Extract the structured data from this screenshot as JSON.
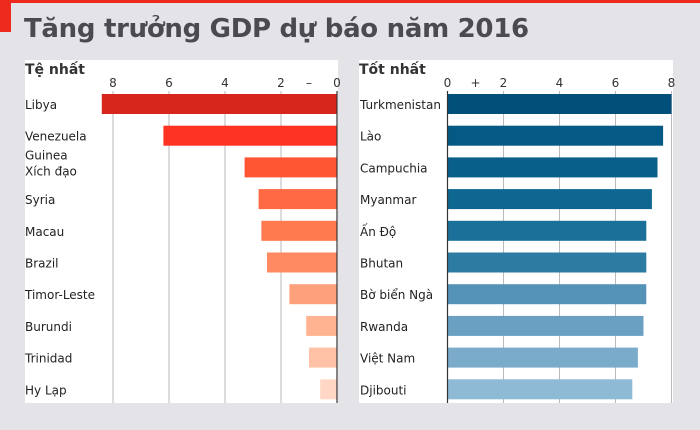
{
  "title": "Tăng trưởng GDP dự báo năm 2016",
  "colors": {
    "accent": "#ee2a1f",
    "worst_bars": [
      "#d7261c",
      "#ff3322",
      "#ff5533",
      "#ff6a44",
      "#ff7a4f",
      "#ff8a62",
      "#ffa07c",
      "#ffb391",
      "#ffc2a6",
      "#ffd7c4"
    ],
    "best_bars": [
      "#00507a",
      "#045a84",
      "#075f8a",
      "#0e6791",
      "#1a7099",
      "#2c7ba3",
      "#5592b7",
      "#6aa1c3",
      "#7aabcb",
      "#8fbad6"
    ]
  },
  "chart_data": [
    {
      "type": "bar",
      "orientation": "horizontal",
      "direction": "right-to-left",
      "title": "Tệ nhất",
      "xlim": [
        0,
        8
      ],
      "ticks": [
        "8",
        "6",
        "4",
        "2",
        "–",
        "0"
      ],
      "tick_values": [
        8,
        6,
        4,
        2,
        1,
        0
      ],
      "categories": [
        "Libya",
        "Venezuela",
        "Guinea\nXích đạo",
        "Syria",
        "Macau",
        "Brazil",
        "Timor-Leste",
        "Burundi",
        "Trinidad",
        "Hy Lạp"
      ],
      "values": [
        -8.4,
        -6.2,
        -3.3,
        -2.8,
        -2.7,
        -2.5,
        -1.7,
        -1.1,
        -1.0,
        -0.6
      ],
      "grid": true
    },
    {
      "type": "bar",
      "orientation": "horizontal",
      "direction": "left-to-right",
      "title": "Tốt nhất",
      "xlim": [
        0,
        8
      ],
      "ticks": [
        "0",
        "+",
        "2",
        "4",
        "6",
        "8"
      ],
      "tick_values": [
        0,
        1,
        2,
        4,
        6,
        8
      ],
      "categories": [
        "Turkmenistan",
        "Lào",
        "Campuchia",
        "Myanmar",
        "Ấn Độ",
        "Bhutan",
        "Bờ biển Ngà",
        "Rwanda",
        "Việt Nam",
        "Djibouti"
      ],
      "values": [
        8.0,
        7.7,
        7.5,
        7.3,
        7.1,
        7.1,
        7.1,
        7.0,
        6.8,
        6.6
      ],
      "grid": true
    }
  ]
}
